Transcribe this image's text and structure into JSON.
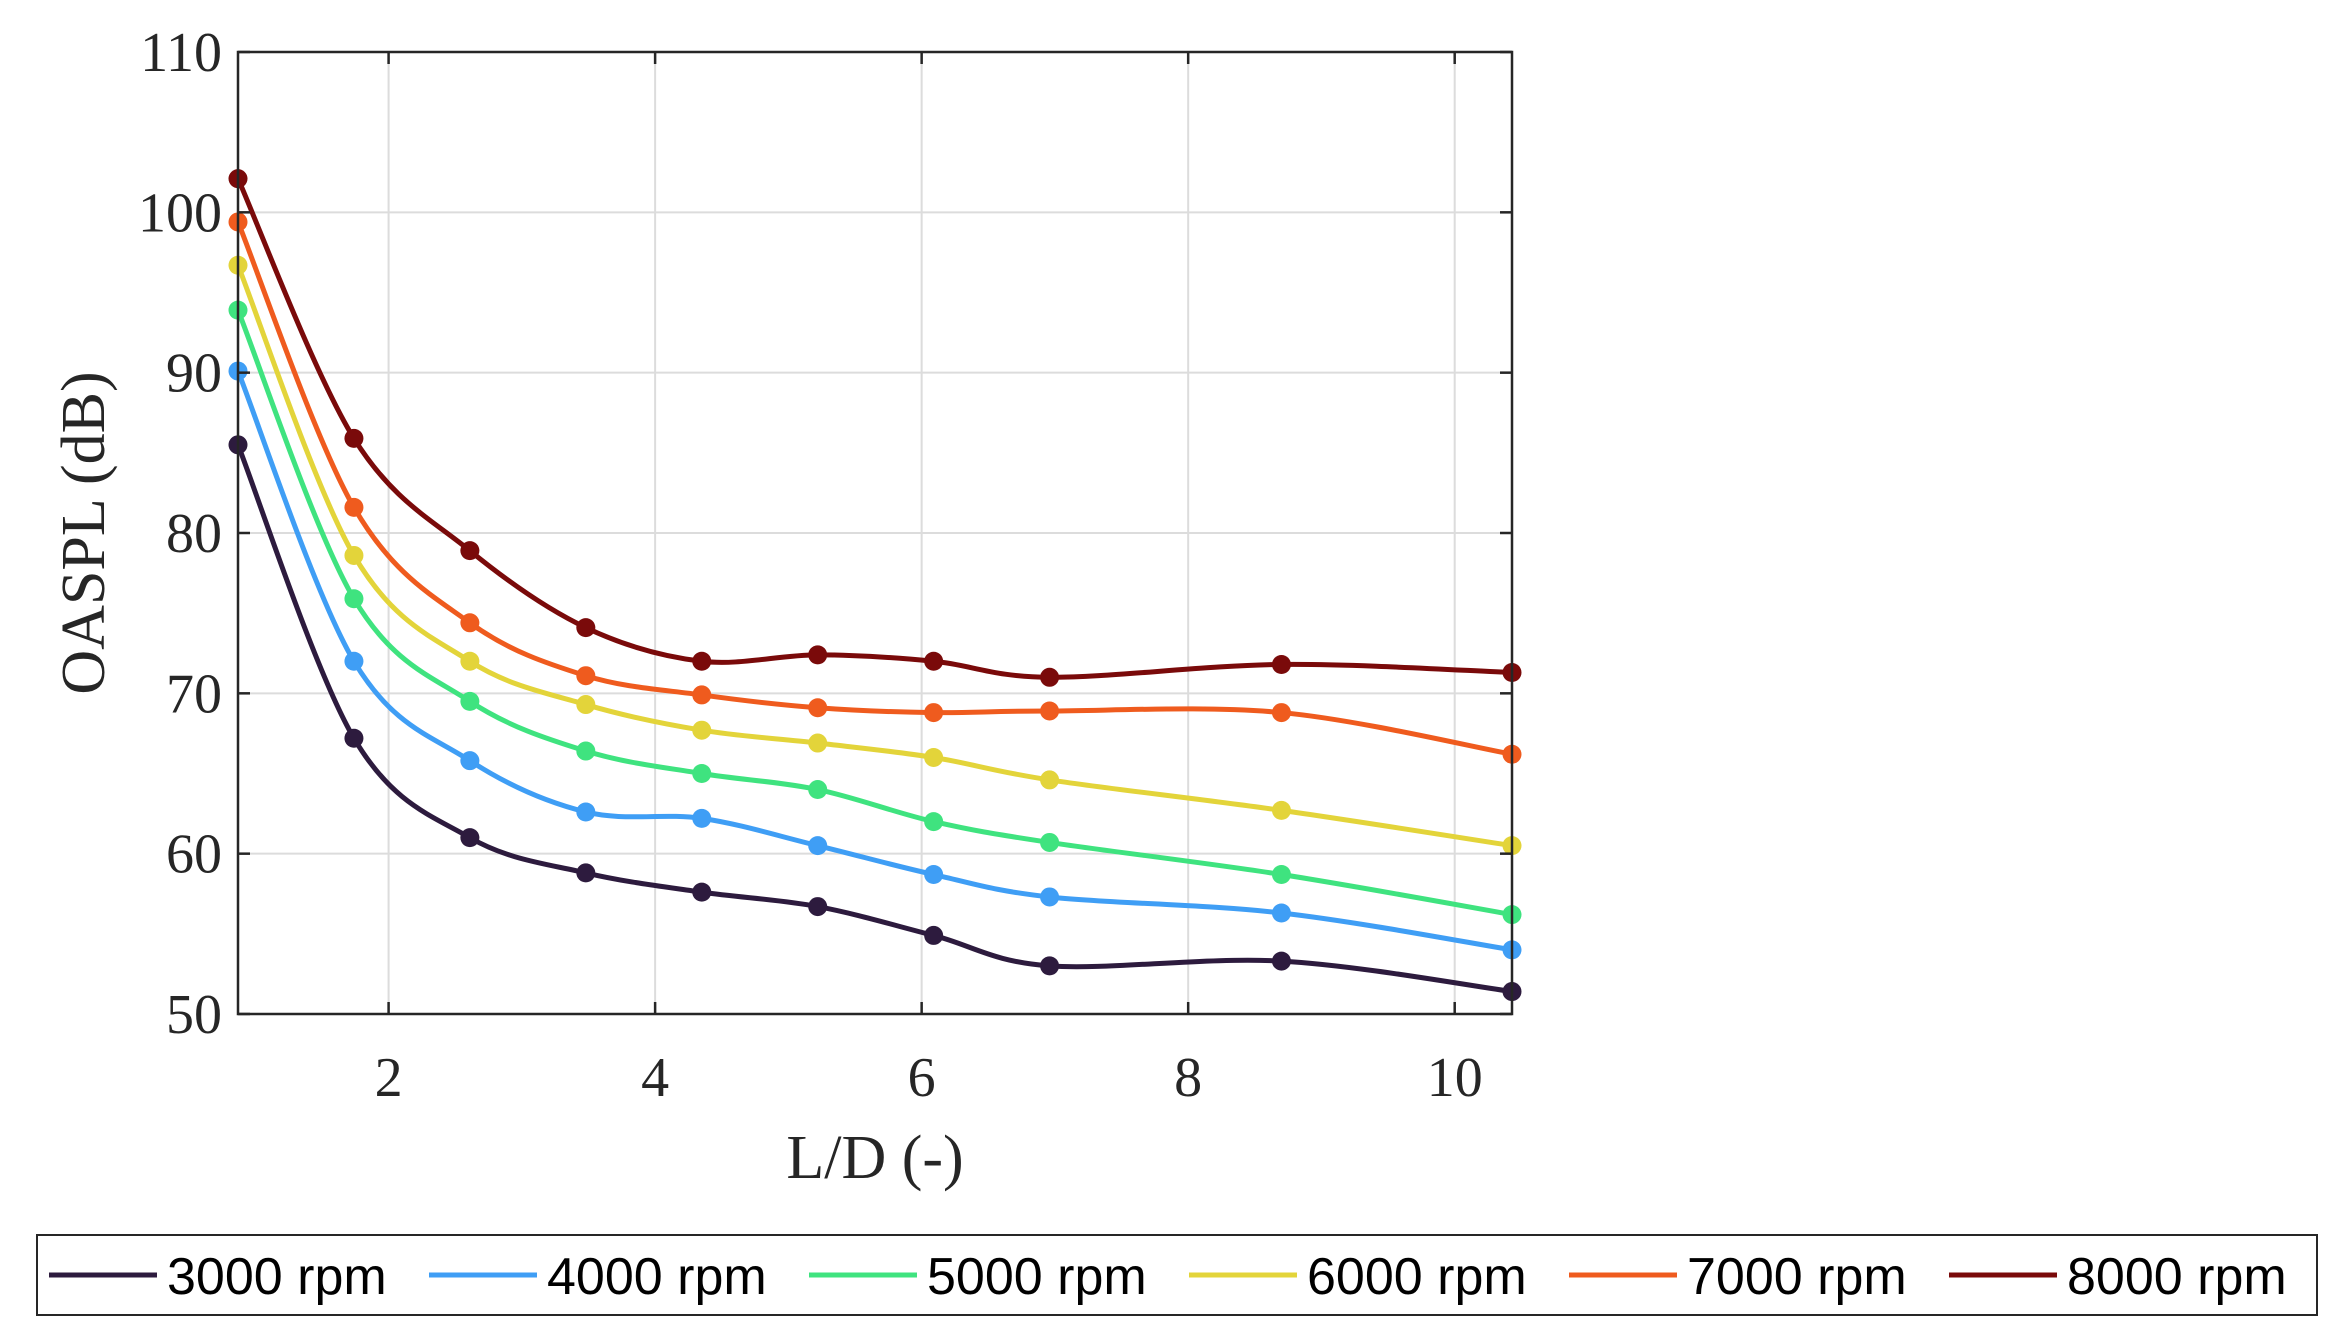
{
  "chart_data": {
    "type": "line",
    "title": "",
    "xlabel": "L/D (-)",
    "ylabel": "OASPL (dB)",
    "xlim": [
      0.87,
      10.43
    ],
    "ylim": [
      50,
      110
    ],
    "xticks": [
      2,
      4,
      6,
      8,
      10
    ],
    "yticks": [
      50,
      60,
      70,
      80,
      90,
      100,
      110
    ],
    "grid": true,
    "legend_position": "bottom",
    "x": [
      0.87,
      1.74,
      2.61,
      3.48,
      4.35,
      5.22,
      6.09,
      6.96,
      8.7,
      10.43
    ],
    "series": [
      {
        "name": "3000 rpm",
        "color": "#2d1b3e",
        "values": [
          85.5,
          67.2,
          61.0,
          58.8,
          57.6,
          56.7,
          54.9,
          53.0,
          53.3,
          51.4
        ]
      },
      {
        "name": "4000 rpm",
        "color": "#3f9ef5",
        "values": [
          90.1,
          72.0,
          65.8,
          62.6,
          62.2,
          60.5,
          58.7,
          57.3,
          56.3,
          54.0
        ]
      },
      {
        "name": "5000 rpm",
        "color": "#3fe37f",
        "values": [
          93.9,
          75.9,
          69.5,
          66.4,
          65.0,
          64.0,
          62.0,
          60.7,
          58.7,
          56.2
        ]
      },
      {
        "name": "6000 rpm",
        "color": "#e3d43a",
        "values": [
          96.7,
          78.6,
          72.0,
          69.3,
          67.7,
          66.9,
          66.0,
          64.6,
          62.7,
          60.5
        ]
      },
      {
        "name": "7000 rpm",
        "color": "#ef5b1e",
        "values": [
          99.4,
          81.6,
          74.4,
          71.1,
          69.9,
          69.1,
          68.8,
          68.9,
          68.8,
          66.2
        ]
      },
      {
        "name": "8000 rpm",
        "color": "#7a0a0a",
        "values": [
          102.1,
          85.9,
          78.9,
          74.1,
          72.0,
          72.4,
          72.0,
          71.0,
          71.8,
          71.3
        ]
      }
    ]
  }
}
